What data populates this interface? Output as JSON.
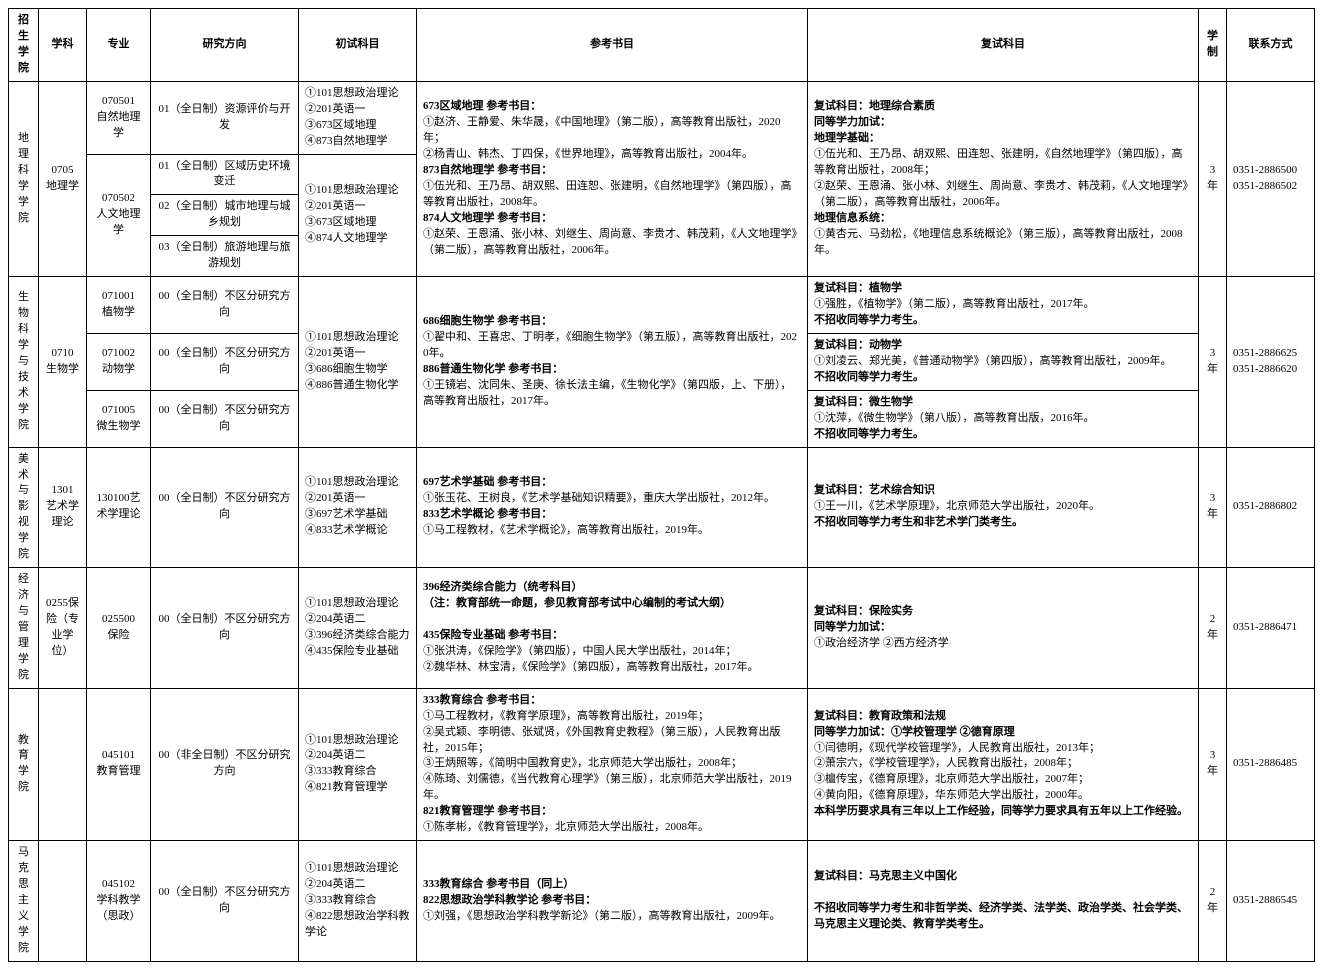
{
  "headers": {
    "h1": "招生学院",
    "h2": "学科",
    "h3": "专业",
    "h4": "研究方向",
    "h5": "初试科目",
    "h6": "参考书目",
    "h7": "复试科目",
    "h8": "学制",
    "h9": "联系方式"
  },
  "geo": {
    "college": "地理科学学院",
    "discipline": "0705\n地理学",
    "major1": "070501\n自然地理学",
    "major2": "070502\n人文地理学",
    "dir1": "01（全日制）资源评价与开发",
    "dir2": "01（全日制）区域历史环境变迁",
    "dir3": "02（全日制）城市地理与城乡规划",
    "dir4": "03（全日制）旅游地理与旅游规划",
    "prelim1": "①101思想政治理论\n②201英语一\n③673区域地理\n④873自然地理学",
    "prelim2": "①101思想政治理论\n②201英语一\n③673区域地理\n④874人文地理学",
    "ref_head1": "673区域地理  参考书目：",
    "ref_l1": "①赵济、王静爱、朱华晟，《中国地理》（第二版），高等教育出版社，2020年；",
    "ref_l2": "②杨青山、韩杰、丁四保，《世界地理》，高等教育出版社，2004年。",
    "ref_head2": "873自然地理学  参考书目：",
    "ref_l3": "①伍光和、王乃昂、胡双熙、田连恕、张建明，《自然地理学》（第四版），高等教育出版社，2008年。",
    "ref_head3": "874人文地理学  参考书目：",
    "ref_l4": "①赵荣、王恩涌、张小林、刘继生、周尚意、李贵才、韩茂莉，《人文地理学》（第二版），高等教育出版社，2006年。",
    "retest_head": "复试科目：地理综合素质",
    "retest_sub": "同等学力加试：",
    "retest_sub1": "地理学基础：",
    "retest_l1": "①伍光和、王乃昂、胡双熙、田连恕、张建明，《自然地理学》（第四版），高等教育出版社，2008年；",
    "retest_l2": "②赵荣、王恩涌、张小林、刘继生、周尚意、李贵才、韩茂莉，《人文地理学》（第二版），高等教育出版社，2006年。",
    "retest_sub2": "地理信息系统：",
    "retest_l3": "①黄杏元、马劲松，《地理信息系统概论》（第三版），高等教育出版社，2008年。",
    "years": "3年",
    "contact": "0351-2886500\n0351-2886502"
  },
  "bio": {
    "college": "生物科学与技术学院",
    "discipline": "0710\n生物学",
    "major1": "071001\n植物学",
    "major2": "071002\n动物学",
    "major3": "071005\n微生物学",
    "dir": "00（全日制）不区分研究方向",
    "prelim": "①101思想政治理论\n②201英语一\n③686细胞生物学\n④886普通生物化学",
    "ref_head1": "686细胞生物学  参考书目：",
    "ref_l1": "①翟中和、王喜忠、丁明孝，《细胞生物学》（第五版），高等教育出版社，2020年。",
    "ref_head2": "886普通生物化学  参考书目：",
    "ref_l2": "①王镜岩、沈同朱、圣庚、徐长法主编，《生物化学》（第四版，上、下册），高等教育出版社，2017年。",
    "retest1_h": "复试科目：植物学",
    "retest1_l": "①强胜，《植物学》（第二版），高等教育出版社，2017年。",
    "retest1_n": "不招收同等学力考生。",
    "retest2_h": "复试科目：动物学",
    "retest2_l": "①刘凌云、郑光美，《普通动物学》（第四版），高等教育出版社，2009年。",
    "retest2_n": "不招收同等学力考生。",
    "retest3_h": "复试科目：微生物学",
    "retest3_l": "①沈萍，《微生物学》（第八版），高等教育出版，2016年。",
    "retest3_n": "不招收同等学力考生。",
    "years": "3年",
    "contact": "0351-2886625\n0351-2886620"
  },
  "art": {
    "college": "美术与影视学院",
    "discipline": "1301\n艺术学理论",
    "major": "130100艺术学理论",
    "dir": "00（全日制）不区分研究方向",
    "prelim": "①101思想政治理论\n②201英语一\n③697艺术学基础\n④833艺术学概论",
    "ref_head1": "697艺术学基础  参考书目：",
    "ref_l1": "①张玉花、王树良，《艺术学基础知识精要》，重庆大学出版社，2012年。",
    "ref_head2": "833艺术学概论  参考书目：",
    "ref_l2": "①马工程教材，《艺术学概论》，高等教育出版社，2019年。",
    "retest_h": "复试科目：艺术综合知识",
    "retest_l": "①王一川，《艺术学原理》，北京师范大学出版社，2020年。",
    "retest_n": "不招收同等学力考生和非艺术学门类考生。",
    "years": "3年",
    "contact": "0351-2886802"
  },
  "econ": {
    "college": "经济与管理学院",
    "discipline": "0255保险（专业学位）",
    "major": "025500\n保险",
    "dir": "00（全日制）不区分研究方向",
    "prelim": "①101思想政治理论\n②204英语二\n③396经济类综合能力\n④435保险专业基础",
    "ref_head1": "396经济类综合能力（统考科目）",
    "ref_note": "（注：教育部统一命题，参见教育部考试中心编制的考试大纲）",
    "ref_head2": "435保险专业基础  参考书目：",
    "ref_l1": "①张洪涛，《保险学》（第四版），中国人民大学出版社，2014年；",
    "ref_l2": "②魏华林、林宝清，《保险学》（第四版），高等教育出版社，2017年。",
    "retest_h": "复试科目：保险实务",
    "retest_sub": "同等学力加试：",
    "retest_l": "①政治经济学  ②西方经济学",
    "years": "2年",
    "contact": "0351-2886471"
  },
  "edu": {
    "college": "教育学院",
    "major": "045101\n教育管理",
    "dir": "00（非全日制）不区分研究方向",
    "prelim": "①101思想政治理论\n②204英语二\n③333教育综合\n④821教育管理学",
    "ref_head1": "333教育综合  参考书目：",
    "ref_l1": "①马工程教材，《教育学原理》，高等教育出版社，2019年；",
    "ref_l2": "②吴式颖、李明德、张斌贤，《外国教育史教程》（第三版），人民教育出版社，2015年；",
    "ref_l3": "③王炳照等，《简明中国教育史》，北京师范大学出版社，2008年；",
    "ref_l4": "④陈琦、刘儒德，《当代教育心理学》（第三版），北京师范大学出版社，2019年。",
    "ref_head2": "821教育管理学  参考书目：",
    "ref_l5": "①陈孝彬，《教育管理学》，北京师范大学出版社，2008年。",
    "retest_h": "复试科目：教育政策和法规",
    "retest_sub": "同等学力加试：①学校管理学  ②德育原理",
    "retest_l1": "①闫德明，《现代学校管理学》，人民教育出版社，2013年；",
    "retest_l2": "②萧宗六，《学校管理学》，人民教育出版社，2008年；",
    "retest_l3": "③檀传宝，《德育原理》，北京师范大学出版社，2007年；",
    "retest_l4": "④黄向阳，《德育原理》，华东师范大学出版社，2000年。",
    "retest_n": "本科学历要求具有三年以上工作经验，同等学力要求具有五年以上工作经验。",
    "years": "3年",
    "contact": "0351-2886485"
  },
  "marx": {
    "college": "马克思主义学院",
    "major": "045102\n学科教学（思政）",
    "dir": "00（全日制）不区分研究方向",
    "prelim": "①101思想政治理论\n②204英语二\n③333教育综合\n④822思想政治学科教学论",
    "ref_head1": "333教育综合  参考书目（同上）",
    "ref_head2": "822思想政治学科教学论  参考书目：",
    "ref_l1": "①刘强，《思想政治学科教学新论》（第二版），高等教育出版社，2009年。",
    "retest_h": "复试科目：马克思主义中国化",
    "retest_n": "不招收同等学力考生和非哲学类、经济学类、法学类、政治学类、社会学类、马克思主义理论类、教育学类考生。",
    "years": "2年",
    "contact": "0351-2886545"
  }
}
